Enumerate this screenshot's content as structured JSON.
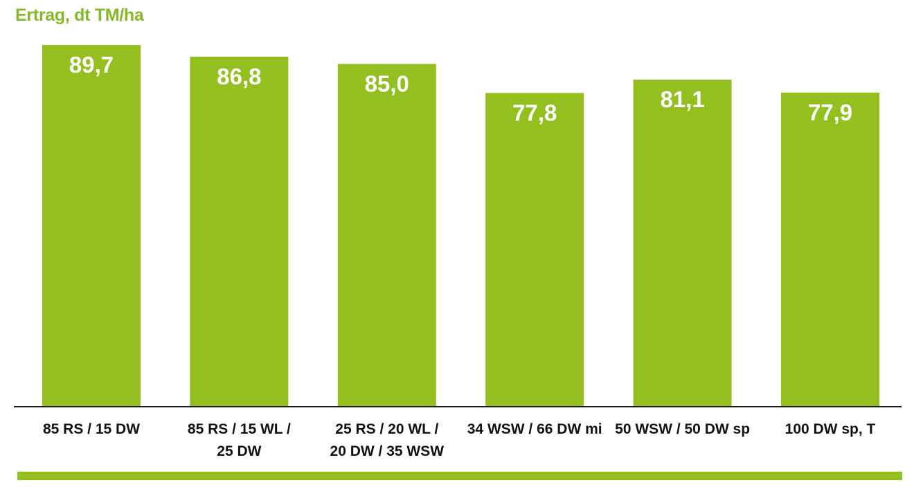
{
  "chart_data": {
    "type": "bar",
    "ylabel": "Ertrag, dt TM/ha",
    "categories": [
      [
        "85 RS / 15 DW"
      ],
      [
        "85 RS / 15 WL /",
        "25 DW"
      ],
      [
        "25 RS / 20 WL /",
        "20 DW / 35 WSW"
      ],
      [
        "34 WSW / 66 DW mi"
      ],
      [
        "50 WSW / 50 DW sp"
      ],
      [
        "100 DW sp, T"
      ]
    ],
    "values": [
      89.7,
      86.8,
      85.0,
      77.8,
      81.1,
      77.9
    ],
    "value_labels": [
      "89,7",
      "86,8",
      "85,0",
      "77,8",
      "81,1",
      "77,9"
    ],
    "ylim": [
      0,
      100
    ],
    "grid": false,
    "legend": "none"
  },
  "colors": {
    "bar": "#93c01f",
    "title": "#86b928",
    "axis": "#1a1a1a",
    "value_label": "#ffffff",
    "category_label": "#111111"
  }
}
